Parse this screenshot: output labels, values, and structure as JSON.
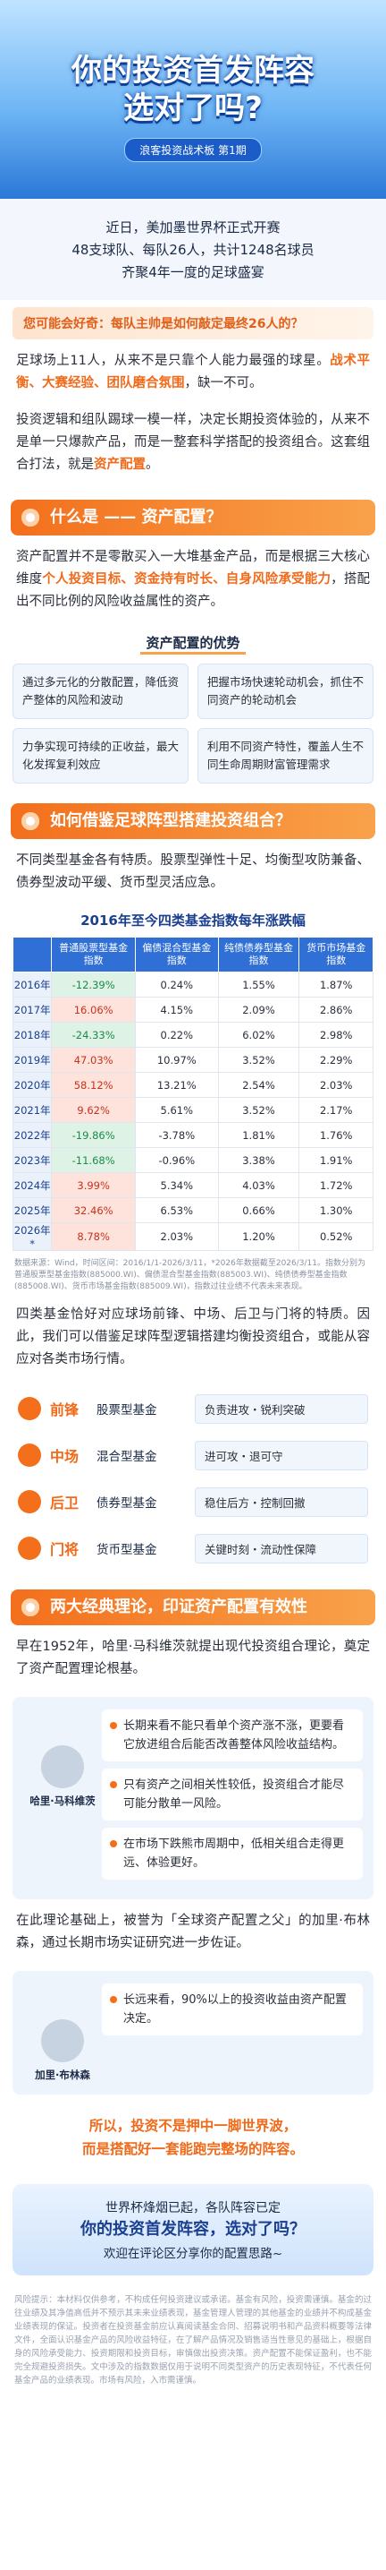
{
  "header": {
    "title_line1": "你的投资首发阵容",
    "title_line2": "选对了吗?",
    "badge": "浪客投资战术板 第1期"
  },
  "intro": [
    "近日，美加墨世界杯正式开赛",
    "48支球队、每队26人，共计1248名球员",
    "齐聚4年一度的足球盛宴"
  ],
  "question": "您可能会好奇：每队主帅是如何敲定最终26人的？",
  "paragraphs": [
    [
      "足球场上11人，从来不是只靠个人能力最强的球星。",
      "战术平衡、大赛经验、团队磨合氛围",
      "，缺一不可。"
    ],
    [
      "投资逻辑和组队踢球一模一样，决定长期投资体验的，从来不是单一只爆款产品，而是一整套科学搭配的投资组合。这套组合打法，就是",
      "资产配置",
      "。"
    ]
  ],
  "section1": {
    "heading": "什么是 —— 资产配置？",
    "text": [
      "资产配置并不是零散买入一大堆基金产品，而是根据三大核心维度",
      "个人投资目标、资金持有时长、自身风险承受能力",
      "，搭配出不同比例的风险收益属性的资产。"
    ],
    "sub_heading": "资产配置的优势",
    "advantages": [
      "通过多元化的分散配置，降低资产整体的风险和波动",
      "把握市场快速轮动机会，抓住不同资产的轮动机会",
      "力争实现可持续的正收益，最大化发挥复利效应",
      "利用不同资产特性，覆盖人生不同生命周期财富管理需求"
    ]
  },
  "section2": {
    "heading": "如何借鉴足球阵型搭建投资组合？",
    "text": "不同类型基金各有特质。股票型弹性十足、均衡型攻防兼备、债券型波动平缓、货币型灵活应急。",
    "table": {
      "title": "2016年至今四类基金指数每年涨跌幅",
      "columns": [
        "普通股票型基金指数",
        "偏债混合型基金指数",
        "纯债债券型基金指数",
        "货币市场基金指数"
      ],
      "rows": [
        [
          "2016年",
          "-12.39%",
          "0.24%",
          "1.55%",
          "1.87%"
        ],
        [
          "2017年",
          "16.06%",
          "4.15%",
          "2.09%",
          "2.86%"
        ],
        [
          "2018年",
          "-24.33%",
          "0.22%",
          "6.02%",
          "2.98%"
        ],
        [
          "2019年",
          "47.03%",
          "10.97%",
          "3.52%",
          "2.29%"
        ],
        [
          "2020年",
          "58.12%",
          "13.21%",
          "2.54%",
          "2.03%"
        ],
        [
          "2021年",
          "9.62%",
          "5.61%",
          "3.52%",
          "2.17%"
        ],
        [
          "2022年",
          "-19.86%",
          "-3.78%",
          "1.81%",
          "1.76%"
        ],
        [
          "2023年",
          "-11.68%",
          "-0.96%",
          "3.38%",
          "1.91%"
        ],
        [
          "2024年",
          "3.99%",
          "5.34%",
          "4.03%",
          "1.72%"
        ],
        [
          "2025年",
          "32.46%",
          "6.53%",
          "0.66%",
          "1.30%"
        ],
        [
          "2026年*",
          "8.78%",
          "2.03%",
          "1.20%",
          "0.52%"
        ]
      ]
    },
    "note": "数据来源：Wind，时间区间：2016/1/1-2026/3/11，*2026年数据截至2026/3/11。指数分别为普通股票型基金指数(885000.WI)、偏债混合型基金指数(885003.WI)、纯债债券型基金指数(885008.WI)、货币市场基金指数(885009.WI)，指数过往业绩不代表未来表现。",
    "text2": "四类基金恰好对应球场前锋、中场、后卫与门将的特质。因此，我们可以借鉴足球阵型逻辑搭建均衡投资组合，或能从容应对各类市场行情。",
    "positions": [
      {
        "role": "前锋",
        "fund": "股票型基金",
        "desc": "负责进攻・锐利突破"
      },
      {
        "role": "中场",
        "fund": "混合型基金",
        "desc": "进可攻・退可守"
      },
      {
        "role": "后卫",
        "fund": "债券型基金",
        "desc": "稳住后方・控制回撤"
      },
      {
        "role": "门将",
        "fund": "货币型基金",
        "desc": "关键时刻・流动性保障"
      }
    ]
  },
  "section3": {
    "heading": "两大经典理论，印证资产配置有效性",
    "text": "早在1952年，哈里·马科维茨就提出现代投资组合理论，奠定了资产配置理论根基。",
    "person1": {
      "name": "哈里·马科维茨",
      "points": [
        "长期来看不能只看单个资产涨不涨，更要看它放进组合后能否改善整体风险收益结构。",
        "只有资产之间相关性较低，投资组合才能尽可能分散单一风险。",
        "在市场下跌熊市周期中，低相关组合走得更远、体验更好。"
      ]
    },
    "text2": "在此理论基础上，被誉为「全球资产配置之父」的加里·布林森，通过长期市场实证研究进一步佐证。",
    "person2": {
      "name": "加里·布林森",
      "points": [
        "长远来看，90%以上的投资收益由资产配置决定。"
      ]
    },
    "conclusion": [
      "所以，投资不是押中一脚世界波，",
      "而是搭配好一套能跑完整场的阵容。"
    ]
  },
  "closing": [
    "世界杯烽烟已起，各队阵容已定",
    "你的投资首发阵容，选对了吗？",
    "欢迎在评论区分享你的配置思路~"
  ],
  "disclaimer": "风险提示：本材料仅供参考，不构成任何投资建议或承诺。基金有风险，投资需谨慎。基金的过往业绩及其净值高低并不预示其未来业绩表现，基金管理人管理的其他基金的业绩并不构成基金业绩表现的保证。投资者在投资基金前应认真阅读基金合同、招募说明书和产品资料概要等法律文件，全面认识基金产品的风险收益特征，在了解产品情况及销售适当性意见的基础上，根据自身的风险承受能力、投资期限和投资目标，审慎做出投资决策。资产配置不能保证盈利，也不能完全规避投资损失。文中涉及的指数数据仅用于说明不同类型资产的历史表现特征，不代表任何基金产品的业绩表现。市场有风险，入市需谨慎。"
}
